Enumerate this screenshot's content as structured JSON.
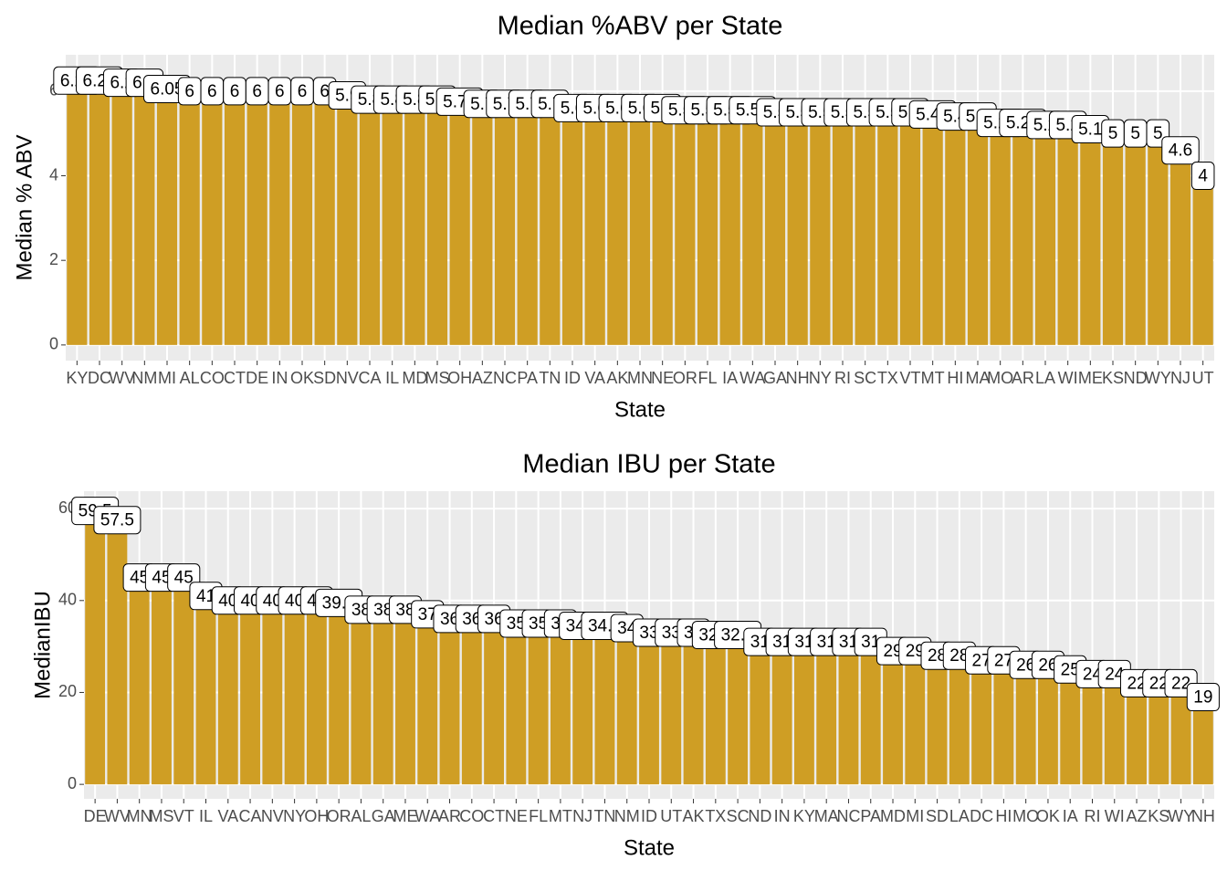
{
  "chart_data": [
    {
      "type": "bar",
      "title": "Median %ABV per State",
      "x_label": "State",
      "y_label": "Median % ABV",
      "categories": [
        "KY",
        "DC",
        "WV",
        "NM",
        "MI",
        "AL",
        "CO",
        "CT",
        "DE",
        "IN",
        "OK",
        "SD",
        "NV",
        "CA",
        "IL",
        "MD",
        "MS",
        "OH",
        "AZ",
        "NC",
        "PA",
        "TN",
        "ID",
        "VA",
        "AK",
        "MN",
        "NE",
        "OR",
        "FL",
        "IA",
        "WA",
        "GA",
        "NH",
        "NY",
        "RI",
        "SC",
        "TX",
        "VT",
        "MT",
        "HI",
        "MA",
        "MO",
        "AR",
        "LA",
        "WI",
        "ME",
        "KS",
        "ND",
        "WY",
        "NJ",
        "UT"
      ],
      "values": [
        6.25,
        6.25,
        6.2,
        6.2,
        6.05,
        6,
        6,
        6,
        6,
        6,
        6,
        6,
        5.9,
        5.8,
        5.8,
        5.8,
        5.8,
        5.75,
        5.7,
        5.7,
        5.7,
        5.7,
        5.6,
        5.6,
        5.6,
        5.6,
        5.6,
        5.55,
        5.55,
        5.55,
        5.55,
        5.5,
        5.5,
        5.5,
        5.5,
        5.5,
        5.5,
        5.5,
        5.45,
        5.4,
        5.4,
        5.25,
        5.25,
        5.2,
        5.2,
        5.1,
        5,
        5,
        5,
        4.6,
        4
      ],
      "color": "#cf9e24",
      "ylim": [
        -0.37,
        6.86
      ],
      "yticks": [
        0,
        2,
        4,
        6
      ],
      "grid": true
    },
    {
      "type": "bar",
      "title": "Median IBU per State",
      "x_label": "State",
      "y_label": "MedianIBU",
      "categories": [
        "DE",
        "WV",
        "MN",
        "MS",
        "VT",
        "IL",
        "VA",
        "CA",
        "NV",
        "NY",
        "OH",
        "OR",
        "AL",
        "GA",
        "ME",
        "WA",
        "AR",
        "CO",
        "CT",
        "NE",
        "FL",
        "MT",
        "NJ",
        "TN",
        "NM",
        "ID",
        "UT",
        "AK",
        "TX",
        "SC",
        "ND",
        "IN",
        "KY",
        "MA",
        "NC",
        "PA",
        "MD",
        "MI",
        "SD",
        "LA",
        "DC",
        "HI",
        "MO",
        "OK",
        "IA",
        "RI",
        "WI",
        "AZ",
        "KS",
        "WY",
        "NH"
      ],
      "values": [
        59.5,
        57.5,
        45,
        45,
        45,
        41,
        40,
        40,
        40,
        40,
        40,
        39.5,
        38,
        38,
        38,
        37,
        36,
        36,
        36,
        35,
        35,
        35,
        34.5,
        34.5,
        34,
        33,
        33,
        33,
        32.5,
        32.5,
        31,
        31,
        31,
        31,
        31,
        31,
        29,
        29,
        28,
        28,
        27,
        27,
        26,
        26,
        25,
        24,
        24,
        22,
        22,
        22,
        19
      ],
      "color": "#cf9e24",
      "ylim": [
        -3.15,
        63.8
      ],
      "yticks": [
        0,
        20,
        40,
        60
      ],
      "grid": true
    }
  ]
}
